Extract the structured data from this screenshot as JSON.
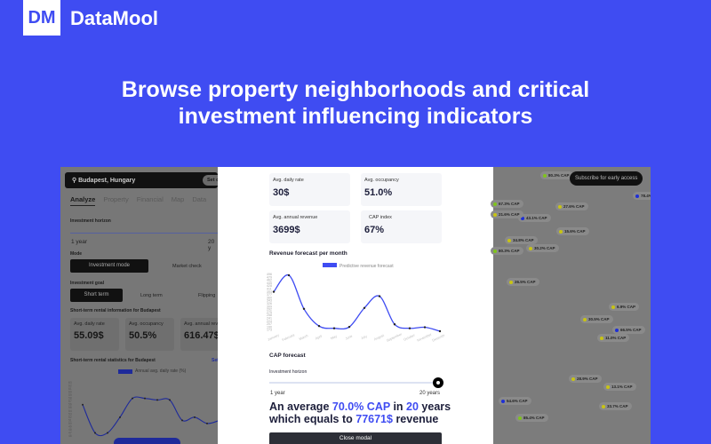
{
  "header": {
    "logo": "DM",
    "brand": "DataMool"
  },
  "hero": {
    "line1": "Browse property neighborhoods and critical",
    "line2": "investment influencing indicators"
  },
  "left_panel": {
    "location": "Budapest, Hungary",
    "set_button": "Set c",
    "tabs": [
      "Analyze",
      "Property",
      "Financial",
      "Map",
      "Data"
    ],
    "investment_horizon_label": "Investment horizon",
    "horizon_min": "1 year",
    "horizon_max": "20 y",
    "mode_label": "Mode",
    "mode_options": [
      "Investment mode",
      "Market check"
    ],
    "goal_label": "Investment goal",
    "goal_options": [
      "Short term",
      "Long term",
      "Flipping"
    ],
    "info_title": "Short-term rental information for Budapest",
    "cards": [
      {
        "label": "Avg. daily rate",
        "value": "55.09$"
      },
      {
        "label": "Avg. occupancy",
        "value": "50.5%"
      },
      {
        "label": "Avg. annual reve",
        "value": "616.47$"
      }
    ],
    "stats_title": "Short-term rental statistics for Budapest",
    "stats_link": "Set",
    "chart_legend": "Annual avg. daily rate (%)",
    "chart_values": [
      56,
      47,
      47,
      52,
      58,
      58,
      57.5,
      57.5,
      51,
      52,
      50,
      51
    ]
  },
  "modal": {
    "cards": [
      {
        "label": "Avg. daily rate",
        "value": "30$"
      },
      {
        "label": "Avg. occupancy",
        "value": "51.0%"
      },
      {
        "label": "Avg. annual revenue",
        "value": "3699$"
      },
      {
        "label": "CAP index",
        "value": "67%"
      }
    ],
    "chart_title": "Revenue forecast per month",
    "cap_title": "CAP forecast",
    "horizon_label": "Investment horizon",
    "horizon_min": "1 year",
    "horizon_max": "20 years",
    "horizon_value": 20,
    "summary": {
      "a": "An average ",
      "cap": "70.0% CAP",
      "b": " in ",
      "years": "20",
      "c": " years",
      "d": "which equals to ",
      "revenue": "77671$",
      "e": " revenue"
    },
    "close_button": "Close modal"
  },
  "chart_data": {
    "type": "line",
    "categories": [
      "January",
      "February",
      "March",
      "April",
      "May",
      "June",
      "July",
      "August",
      "September",
      "October",
      "November",
      "December"
    ],
    "series": [
      {
        "name": "Predictive revenue forecast",
        "values": [
          394,
          490,
          295,
          195,
          182,
          190,
          300,
          368,
          205,
          182,
          188,
          165
        ]
      }
    ],
    "yticks": [
      496,
      479,
      462,
      445,
      428,
      411,
      394,
      377,
      360,
      343,
      326,
      309,
      292,
      275,
      258,
      241,
      224,
      207,
      190,
      173
    ],
    "ylim": [
      165,
      500
    ],
    "legend": "top",
    "color": "#3f4cf2"
  },
  "map": {
    "subscribe_button": "Subscribe for early access",
    "pins": [
      {
        "label": "80.3% CAP",
        "color": "#7fc41c"
      },
      {
        "label": "78.4% CAP",
        "color": "#1e2fd6"
      },
      {
        "label": "67.3% CAP",
        "color": "#7fc41c"
      },
      {
        "label": "27.6% CAP",
        "color": "#c8c414"
      },
      {
        "label": "21.6% CAP",
        "color": "#c8c414"
      },
      {
        "label": "43.1% CAP",
        "color": "#1e2fd6"
      },
      {
        "label": "15.6% CAP",
        "color": "#c8c414"
      },
      {
        "label": "34.8% CAP",
        "color": "#c8c414"
      },
      {
        "label": "80.3% CAP",
        "color": "#7fc41c"
      },
      {
        "label": "30.2% CAP",
        "color": "#c8c414"
      },
      {
        "label": "26.5% CAP",
        "color": "#c8c414"
      },
      {
        "label": "6.9% CAP",
        "color": "#c8c414"
      },
      {
        "label": "30.5% CAP",
        "color": "#c8c414"
      },
      {
        "label": "66.5% CAP",
        "color": "#1e2fd6"
      },
      {
        "label": "11.0% CAP",
        "color": "#c8c414"
      },
      {
        "label": "28.9% CAP",
        "color": "#c8c414"
      },
      {
        "label": "13.1% CAP",
        "color": "#c8c414"
      },
      {
        "label": "54.6% CAP",
        "color": "#1e2fd6"
      },
      {
        "label": "33.7% CAP",
        "color": "#c8c414"
      },
      {
        "label": "85.4% CAP",
        "color": "#7fc41c"
      }
    ]
  }
}
